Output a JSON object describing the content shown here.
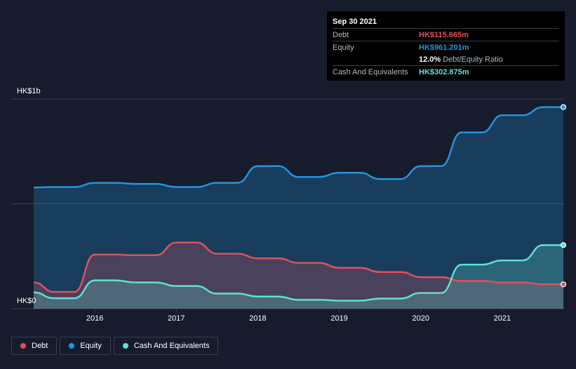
{
  "tooltip": {
    "date": "Sep 30 2021",
    "debt_label": "Debt",
    "debt_value": "HK$115.665m",
    "equity_label": "Equity",
    "equity_value": "HK$961.201m",
    "ratio_value": "12.0%",
    "ratio_label": "Debt/Equity Ratio",
    "cash_label": "Cash And Equivalents",
    "cash_value": "HK$302.875m"
  },
  "legend": {
    "debt": "Debt",
    "equity": "Equity",
    "cash": "Cash And Equivalents"
  },
  "colors": {
    "debt": "#e0505c",
    "equity": "#2394df",
    "cash": "#5fe0d0",
    "background": "#161c2b"
  },
  "chart_data": {
    "type": "area",
    "title": "",
    "y_top_label": "HK$1b",
    "y_bottom_label": "HK$0",
    "ylim": [
      0,
      1000
    ],
    "xlim": [
      2015.25,
      2021.75
    ],
    "x_ticks": [
      {
        "value": 2016,
        "label": "2016"
      },
      {
        "value": 2017,
        "label": "2017"
      },
      {
        "value": 2018,
        "label": "2018"
      },
      {
        "value": 2019,
        "label": "2019"
      },
      {
        "value": 2020,
        "label": "2020"
      },
      {
        "value": 2021,
        "label": "2021"
      }
    ],
    "series": [
      {
        "name": "Equity",
        "key": "equity",
        "x": [
          2015.25,
          2015.5,
          2015.75,
          2016.0,
          2016.25,
          2016.5,
          2016.75,
          2017.0,
          2017.25,
          2017.5,
          2017.75,
          2018.0,
          2018.25,
          2018.5,
          2018.75,
          2019.0,
          2019.25,
          2019.5,
          2019.75,
          2020.0,
          2020.25,
          2020.5,
          2020.75,
          2021.0,
          2021.25,
          2021.5,
          2021.75
        ],
        "values": [
          578,
          580,
          580,
          600,
          600,
          595,
          595,
          580,
          580,
          600,
          600,
          680,
          680,
          628,
          628,
          648,
          648,
          618,
          618,
          680,
          680,
          840,
          840,
          922,
          922,
          961,
          961
        ]
      },
      {
        "name": "Debt",
        "key": "debt",
        "x": [
          2015.25,
          2015.5,
          2015.75,
          2016.0,
          2016.25,
          2016.5,
          2016.75,
          2017.0,
          2017.25,
          2017.5,
          2017.75,
          2018.0,
          2018.25,
          2018.5,
          2018.75,
          2019.0,
          2019.25,
          2019.5,
          2019.75,
          2020.0,
          2020.25,
          2020.5,
          2020.75,
          2021.0,
          2021.25,
          2021.5,
          2021.75
        ],
        "values": [
          125,
          80,
          80,
          258,
          258,
          255,
          255,
          315,
          315,
          262,
          262,
          240,
          240,
          218,
          218,
          195,
          195,
          175,
          175,
          150,
          150,
          132,
          132,
          125,
          125,
          116,
          116
        ]
      },
      {
        "name": "Cash And Equivalents",
        "key": "cash",
        "x": [
          2015.25,
          2015.5,
          2015.75,
          2016.0,
          2016.25,
          2016.5,
          2016.75,
          2017.0,
          2017.25,
          2017.5,
          2017.75,
          2018.0,
          2018.25,
          2018.5,
          2018.75,
          2019.0,
          2019.25,
          2019.5,
          2019.75,
          2020.0,
          2020.25,
          2020.5,
          2020.75,
          2021.0,
          2021.25,
          2021.5,
          2021.75
        ],
        "values": [
          78,
          50,
          50,
          135,
          135,
          125,
          125,
          108,
          108,
          72,
          72,
          58,
          58,
          42,
          42,
          38,
          38,
          48,
          48,
          75,
          75,
          210,
          210,
          230,
          230,
          303,
          303
        ]
      }
    ]
  }
}
